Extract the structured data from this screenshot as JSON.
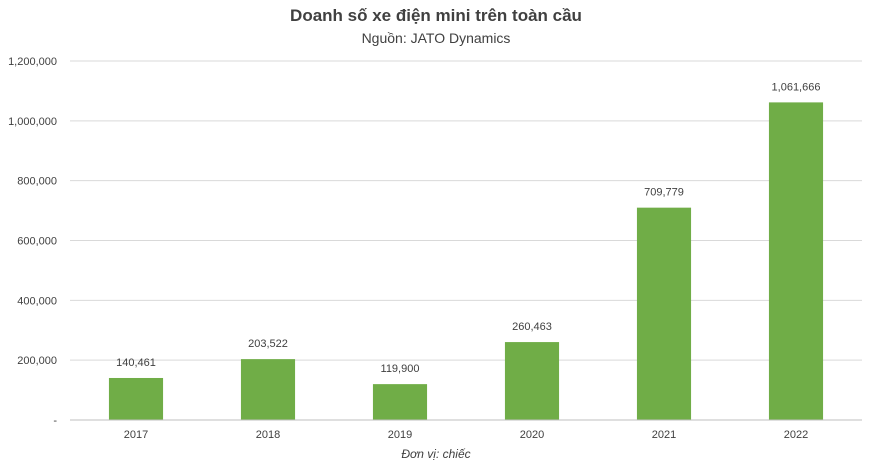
{
  "chart_data": {
    "type": "bar",
    "title": "Doanh số xe điện mini trên toàn cầu",
    "subtitle": "Nguồn: JATO Dynamics",
    "xlabel": "Đơn vị: chiếc",
    "ylabel": "",
    "categories": [
      "2017",
      "2018",
      "2019",
      "2020",
      "2021",
      "2022"
    ],
    "values": [
      140461,
      203522,
      119900,
      260463,
      709779,
      1061666
    ],
    "value_labels": [
      "140,461",
      "203,522",
      "119,900",
      "260,463",
      "709,779",
      "1,061,666"
    ],
    "ylim": [
      0,
      1200000
    ],
    "yticks": [
      0,
      200000,
      400000,
      600000,
      800000,
      1000000,
      1200000
    ],
    "ytick_labels": [
      "-",
      "200,000",
      "400,000",
      "600,000",
      "800,000",
      "1,000,000",
      "1,200,000"
    ],
    "grid": true,
    "legend": "none",
    "bar_color": "#70AD47",
    "grid_color": "#D9D9D9",
    "axis_color": "#BFBFBF"
  }
}
